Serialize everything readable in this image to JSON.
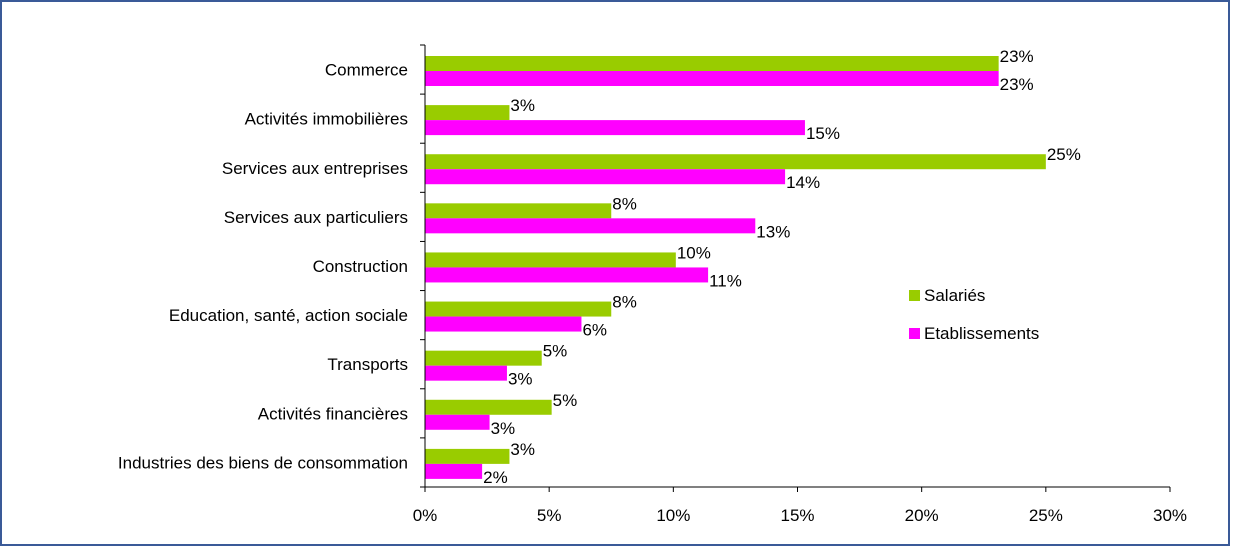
{
  "chart_data": {
    "type": "bar",
    "orientation": "horizontal",
    "categories": [
      "Commerce",
      "Activités immobilières",
      "Services aux entreprises",
      "Services aux particuliers",
      "Construction",
      "Education, santé, action sociale",
      "Transports",
      "Activités financières",
      "Industries des biens de consommation"
    ],
    "series": [
      {
        "name": "Salariés",
        "color": "#99cc00",
        "values": [
          23.1,
          3.4,
          25.0,
          7.5,
          10.1,
          7.5,
          4.7,
          5.1,
          3.4
        ],
        "labels": [
          "23%",
          "3%",
          "25%",
          "8%",
          "10%",
          "8%",
          "5%",
          "5%",
          "3%"
        ]
      },
      {
        "name": "Etablissements",
        "color": "#ff00ff",
        "values": [
          23.1,
          15.3,
          14.5,
          13.3,
          11.4,
          6.3,
          3.3,
          2.6,
          2.3
        ],
        "labels": [
          "23%",
          "15%",
          "14%",
          "13%",
          "11%",
          "6%",
          "3%",
          "3%",
          "2%"
        ]
      }
    ],
    "xlim": [
      0,
      30
    ],
    "xticks": [
      0,
      5,
      10,
      15,
      20,
      25,
      30
    ],
    "xtick_labels": [
      "0%",
      "5%",
      "10%",
      "15%",
      "20%",
      "25%",
      "30%"
    ],
    "grid": false,
    "legend": "right"
  }
}
